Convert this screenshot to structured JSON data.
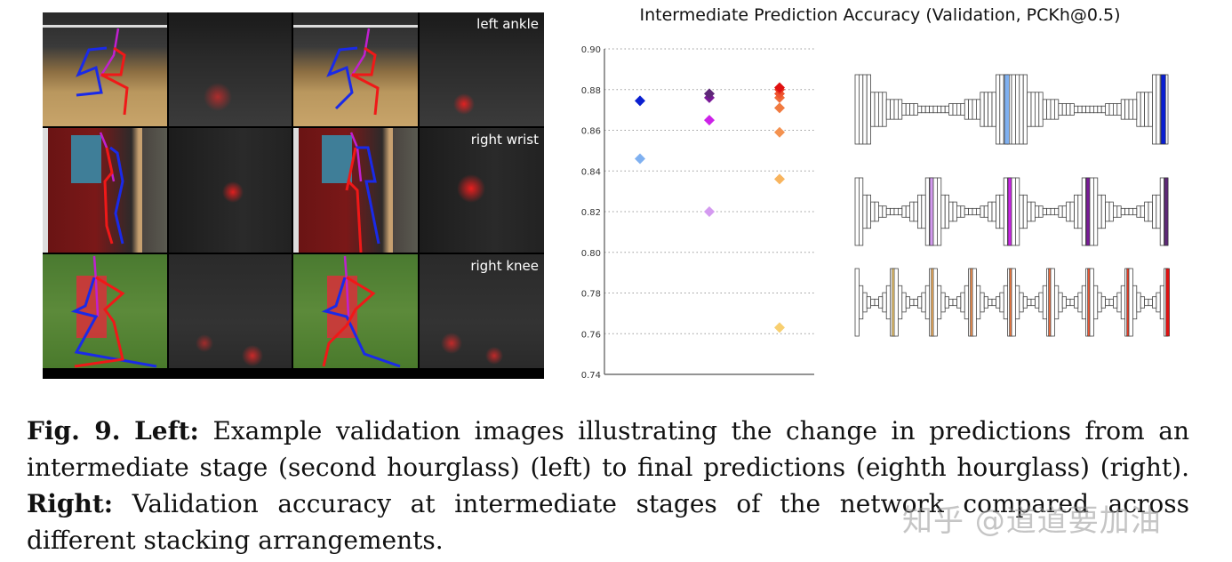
{
  "figure": {
    "left_panel": {
      "rows": [
        {
          "label": "left ankle",
          "scene": "basketball"
        },
        {
          "label": "right wrist",
          "scene": "indoor"
        },
        {
          "label": "right knee",
          "scene": "running"
        }
      ],
      "columns": [
        "intermediate prediction",
        "intermediate heatmap",
        "final prediction",
        "final heatmap"
      ]
    },
    "caption": {
      "fig_label": "Fig. 9.",
      "left_label": "Left:",
      "left_text": " Example validation images illustrating the change in predictions from an intermediate stage (second hourglass) (left) to final predictions (eighth hourglass) (right). ",
      "right_label": "Right:",
      "right_text": " Validation accuracy at intermediate stages of the network compared across different stacking arrangements."
    },
    "watermark": "知乎 @道道要加油"
  },
  "chart_data": {
    "type": "scatter",
    "title": "Intermediate Prediction Accuracy (Validation, PCKh@0.5)",
    "xlabel": "",
    "ylabel": "",
    "ylim": [
      0.74,
      0.9
    ],
    "yticks": [
      "0.90",
      "0.88",
      "0.86",
      "0.84",
      "0.82",
      "0.80",
      "0.78",
      "0.76",
      "0.74"
    ],
    "grid": "horizontal dotted",
    "marker": "diamond",
    "categories": [
      "2 stacks",
      "4 stacks",
      "8 stacks"
    ],
    "series": [
      {
        "name": "2-stack",
        "x": 0,
        "points": [
          {
            "stage": 1,
            "value": 0.846,
            "color": "#7fb0f0"
          },
          {
            "stage": 2,
            "value": 0.8745,
            "color": "#0a1fd0"
          }
        ]
      },
      {
        "name": "4-stack",
        "x": 1,
        "points": [
          {
            "stage": 1,
            "value": 0.82,
            "color": "#d49af0"
          },
          {
            "stage": 2,
            "value": 0.865,
            "color": "#cc22e8"
          },
          {
            "stage": 3,
            "value": 0.876,
            "color": "#7a1a98"
          },
          {
            "stage": 4,
            "value": 0.878,
            "color": "#5e2878"
          }
        ]
      },
      {
        "name": "8-stack",
        "x": 2,
        "points": [
          {
            "stage": 1,
            "value": 0.763,
            "color": "#f8cf70"
          },
          {
            "stage": 2,
            "value": 0.836,
            "color": "#f8b45e"
          },
          {
            "stage": 3,
            "value": 0.859,
            "color": "#f49250"
          },
          {
            "stage": 4,
            "value": 0.871,
            "color": "#f07a40"
          },
          {
            "stage": 5,
            "value": 0.876,
            "color": "#f06a38"
          },
          {
            "stage": 6,
            "value": 0.878,
            "color": "#ee5530"
          },
          {
            "stage": 7,
            "value": 0.88,
            "color": "#e83a22"
          },
          {
            "stage": 8,
            "value": 0.881,
            "color": "#e01010"
          }
        ]
      }
    ],
    "diagrams": [
      {
        "stacks": 2,
        "highlight_colors": [
          "#7fb0f0",
          "#0a1fd0"
        ]
      },
      {
        "stacks": 4,
        "highlight_colors": [
          "#d49af0",
          "#cc22e8",
          "#7a1a98",
          "#5e2878"
        ]
      },
      {
        "stacks": 8,
        "highlight_colors": [
          "#f8cf70",
          "#f8b45e",
          "#f49250",
          "#f07a40",
          "#f06a38",
          "#ee5530",
          "#e83a22",
          "#e01010"
        ]
      }
    ]
  }
}
